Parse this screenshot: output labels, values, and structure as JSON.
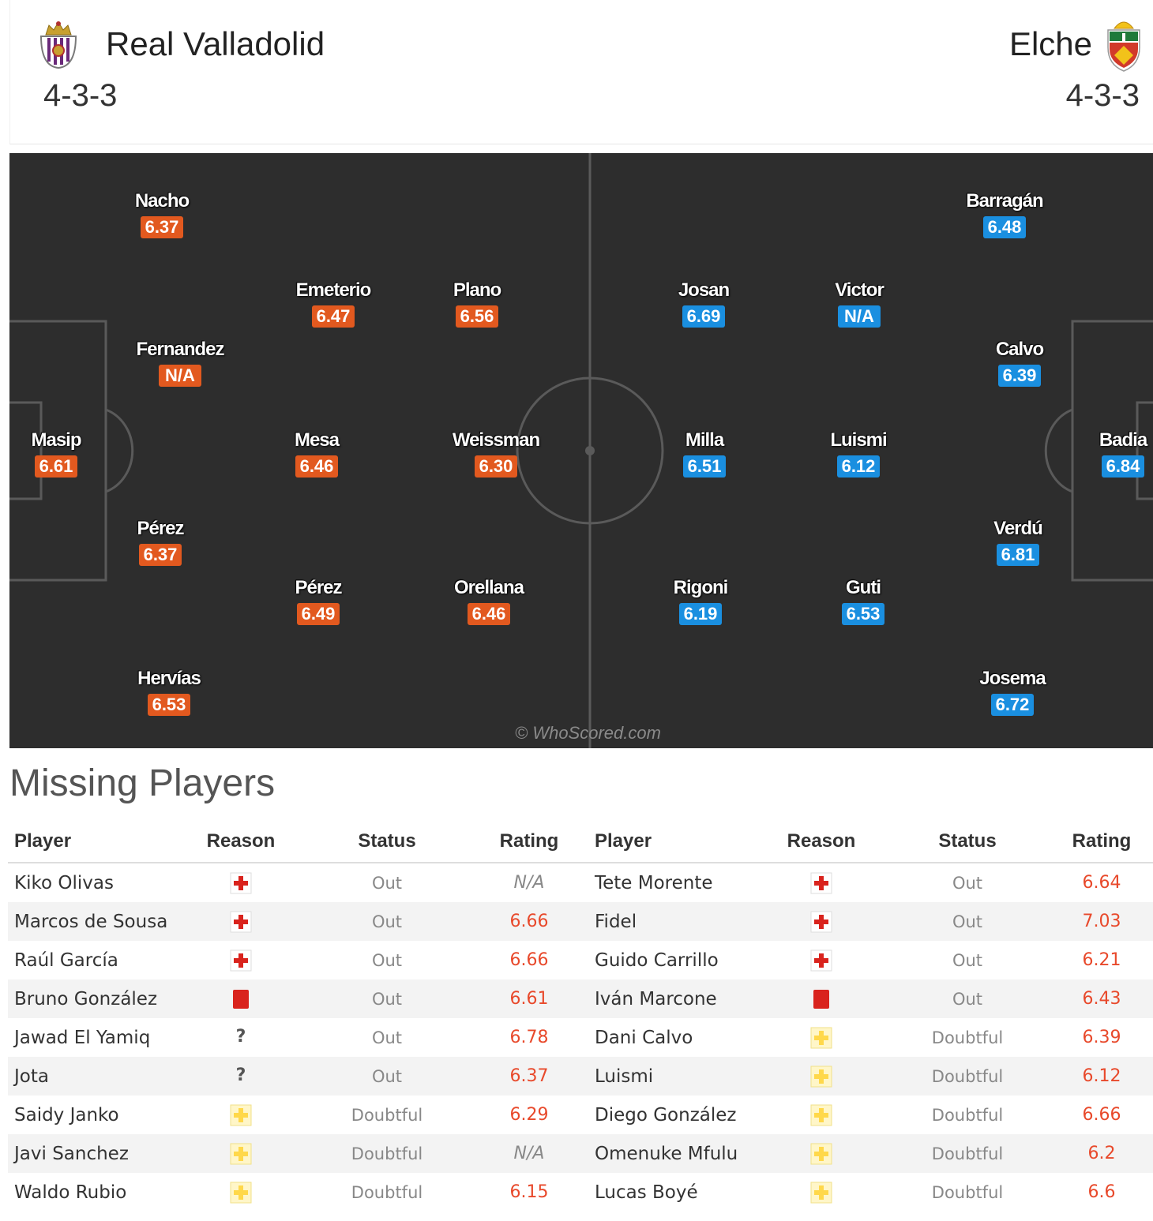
{
  "home": {
    "name": "Real Valladolid",
    "formation": "4-3-3",
    "rating_color": "#e2591f",
    "crest_icon": "real-valladolid-crest"
  },
  "away": {
    "name": "Elche",
    "formation": "4-3-3",
    "rating_color": "#1a8fe0",
    "crest_icon": "elche-crest"
  },
  "pitch": {
    "watermark": "© WhoScored.com",
    "home_players": [
      {
        "name": "Nacho",
        "rating": "6.37"
      },
      {
        "name": "Emeterio",
        "rating": "6.47"
      },
      {
        "name": "Plano",
        "rating": "6.56"
      },
      {
        "name": "Fernandez",
        "rating": "N/A"
      },
      {
        "name": "Masip",
        "rating": "6.61"
      },
      {
        "name": "Mesa",
        "rating": "6.46"
      },
      {
        "name": "Weissman",
        "rating": "6.30"
      },
      {
        "name": "Pérez",
        "rating": "6.37"
      },
      {
        "name": "Pérez",
        "rating": "6.49"
      },
      {
        "name": "Orellana",
        "rating": "6.46"
      },
      {
        "name": "Hervías",
        "rating": "6.53"
      }
    ],
    "away_players": [
      {
        "name": "Barragán",
        "rating": "6.48"
      },
      {
        "name": "Josan",
        "rating": "6.69"
      },
      {
        "name": "Victor",
        "rating": "N/A"
      },
      {
        "name": "Calvo",
        "rating": "6.39"
      },
      {
        "name": "Milla",
        "rating": "6.51"
      },
      {
        "name": "Luismi",
        "rating": "6.12"
      },
      {
        "name": "Badia",
        "rating": "6.84"
      },
      {
        "name": "Verdú",
        "rating": "6.81"
      },
      {
        "name": "Rigoni",
        "rating": "6.19"
      },
      {
        "name": "Guti",
        "rating": "6.53"
      },
      {
        "name": "Josema",
        "rating": "6.72"
      }
    ]
  },
  "missing": {
    "title": "Missing Players",
    "headers": [
      "Player",
      "Reason",
      "Status",
      "Rating",
      "Player",
      "Reason",
      "Status",
      "Rating"
    ],
    "home_rows": [
      {
        "player": "Kiko Olivas",
        "reason": "injury-icon",
        "status": "Out",
        "rating": "N/A"
      },
      {
        "player": "Marcos de Sousa",
        "reason": "injury-icon",
        "status": "Out",
        "rating": "6.66"
      },
      {
        "player": "Raúl García",
        "reason": "injury-icon",
        "status": "Out",
        "rating": "6.66"
      },
      {
        "player": "Bruno González",
        "reason": "red-card-icon",
        "status": "Out",
        "rating": "6.61"
      },
      {
        "player": "Jawad El Yamiq",
        "reason": "unknown-icon",
        "reason_text": "?",
        "status": "Out",
        "rating": "6.78"
      },
      {
        "player": "Jota",
        "reason": "unknown-icon",
        "reason_text": "?",
        "status": "Out",
        "rating": "6.37"
      },
      {
        "player": "Saidy Janko",
        "reason": "doubtful-icon",
        "status": "Doubtful",
        "rating": "6.29"
      },
      {
        "player": "Javi Sanchez",
        "reason": "doubtful-icon",
        "status": "Doubtful",
        "rating": "N/A"
      },
      {
        "player": "Waldo Rubio",
        "reason": "doubtful-icon",
        "status": "Doubtful",
        "rating": "6.15"
      }
    ],
    "away_rows": [
      {
        "player": "Tete Morente",
        "reason": "injury-icon",
        "status": "Out",
        "rating": "6.64"
      },
      {
        "player": "Fidel",
        "reason": "injury-icon",
        "status": "Out",
        "rating": "7.03"
      },
      {
        "player": "Guido Carrillo",
        "reason": "injury-icon",
        "status": "Out",
        "rating": "6.21"
      },
      {
        "player": "Iván Marcone",
        "reason": "red-card-icon",
        "status": "Out",
        "rating": "6.43"
      },
      {
        "player": "Dani Calvo",
        "reason": "doubtful-icon",
        "status": "Doubtful",
        "rating": "6.39"
      },
      {
        "player": "Luismi",
        "reason": "doubtful-icon",
        "status": "Doubtful",
        "rating": "6.12"
      },
      {
        "player": "Diego González",
        "reason": "doubtful-icon",
        "status": "Doubtful",
        "rating": "6.66"
      },
      {
        "player": "Omenuke Mfulu",
        "reason": "doubtful-icon",
        "status": "Doubtful",
        "rating": "6.2"
      },
      {
        "player": "Lucas Boyé",
        "reason": "doubtful-icon",
        "status": "Doubtful",
        "rating": "6.6"
      }
    ]
  }
}
